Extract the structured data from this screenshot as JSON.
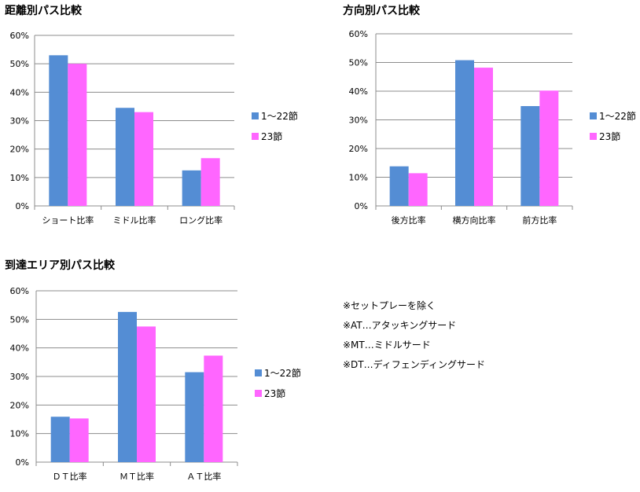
{
  "series_names": [
    "1～22節",
    "23節"
  ],
  "colors": {
    "series1": "#548DD4",
    "series2": "#FF66FF",
    "grid": "#8C8C8C"
  },
  "chart_data": [
    {
      "type": "bar",
      "title": "距離別パス比較",
      "categories": [
        "ショート比率",
        "ミドル比率",
        "ロング比率"
      ],
      "series": [
        {
          "name": "1～22節",
          "values": [
            53,
            34.5,
            12.5
          ]
        },
        {
          "name": "23節",
          "values": [
            50,
            33,
            16.8
          ]
        }
      ],
      "yticks": [
        "0%",
        "10%",
        "20%",
        "30%",
        "40%",
        "50%",
        "60%"
      ],
      "ylim": [
        0,
        60
      ],
      "grid": true,
      "legend": "right"
    },
    {
      "type": "bar",
      "title": "方向別パス比較",
      "categories": [
        "後方比率",
        "横方向比率",
        "前方比率"
      ],
      "series": [
        {
          "name": "1～22節",
          "values": [
            13.8,
            50.8,
            34.8
          ]
        },
        {
          "name": "23節",
          "values": [
            11.4,
            48.2,
            40.2
          ]
        }
      ],
      "yticks": [
        "0%",
        "10%",
        "20%",
        "30%",
        "40%",
        "50%",
        "60%"
      ],
      "ylim": [
        0,
        60
      ],
      "grid": true,
      "legend": "right"
    },
    {
      "type": "bar",
      "title": "到達エリア別パス比較",
      "categories": [
        "ＤＴ比率",
        "ＭＴ比率",
        "ＡＴ比率"
      ],
      "series": [
        {
          "name": "1～22節",
          "values": [
            15.9,
            52.6,
            31.5
          ]
        },
        {
          "name": "23節",
          "values": [
            15.3,
            47.5,
            37.3
          ]
        }
      ],
      "yticks": [
        "0%",
        "10%",
        "20%",
        "30%",
        "40%",
        "50%",
        "60%"
      ],
      "ylim": [
        0,
        60
      ],
      "grid": true,
      "legend": "right"
    }
  ],
  "notes": [
    "※セットプレーを除く",
    "※AT…アタッキングサード",
    "※MT…ミドルサード",
    "※DT…ディフェンディングサード"
  ]
}
